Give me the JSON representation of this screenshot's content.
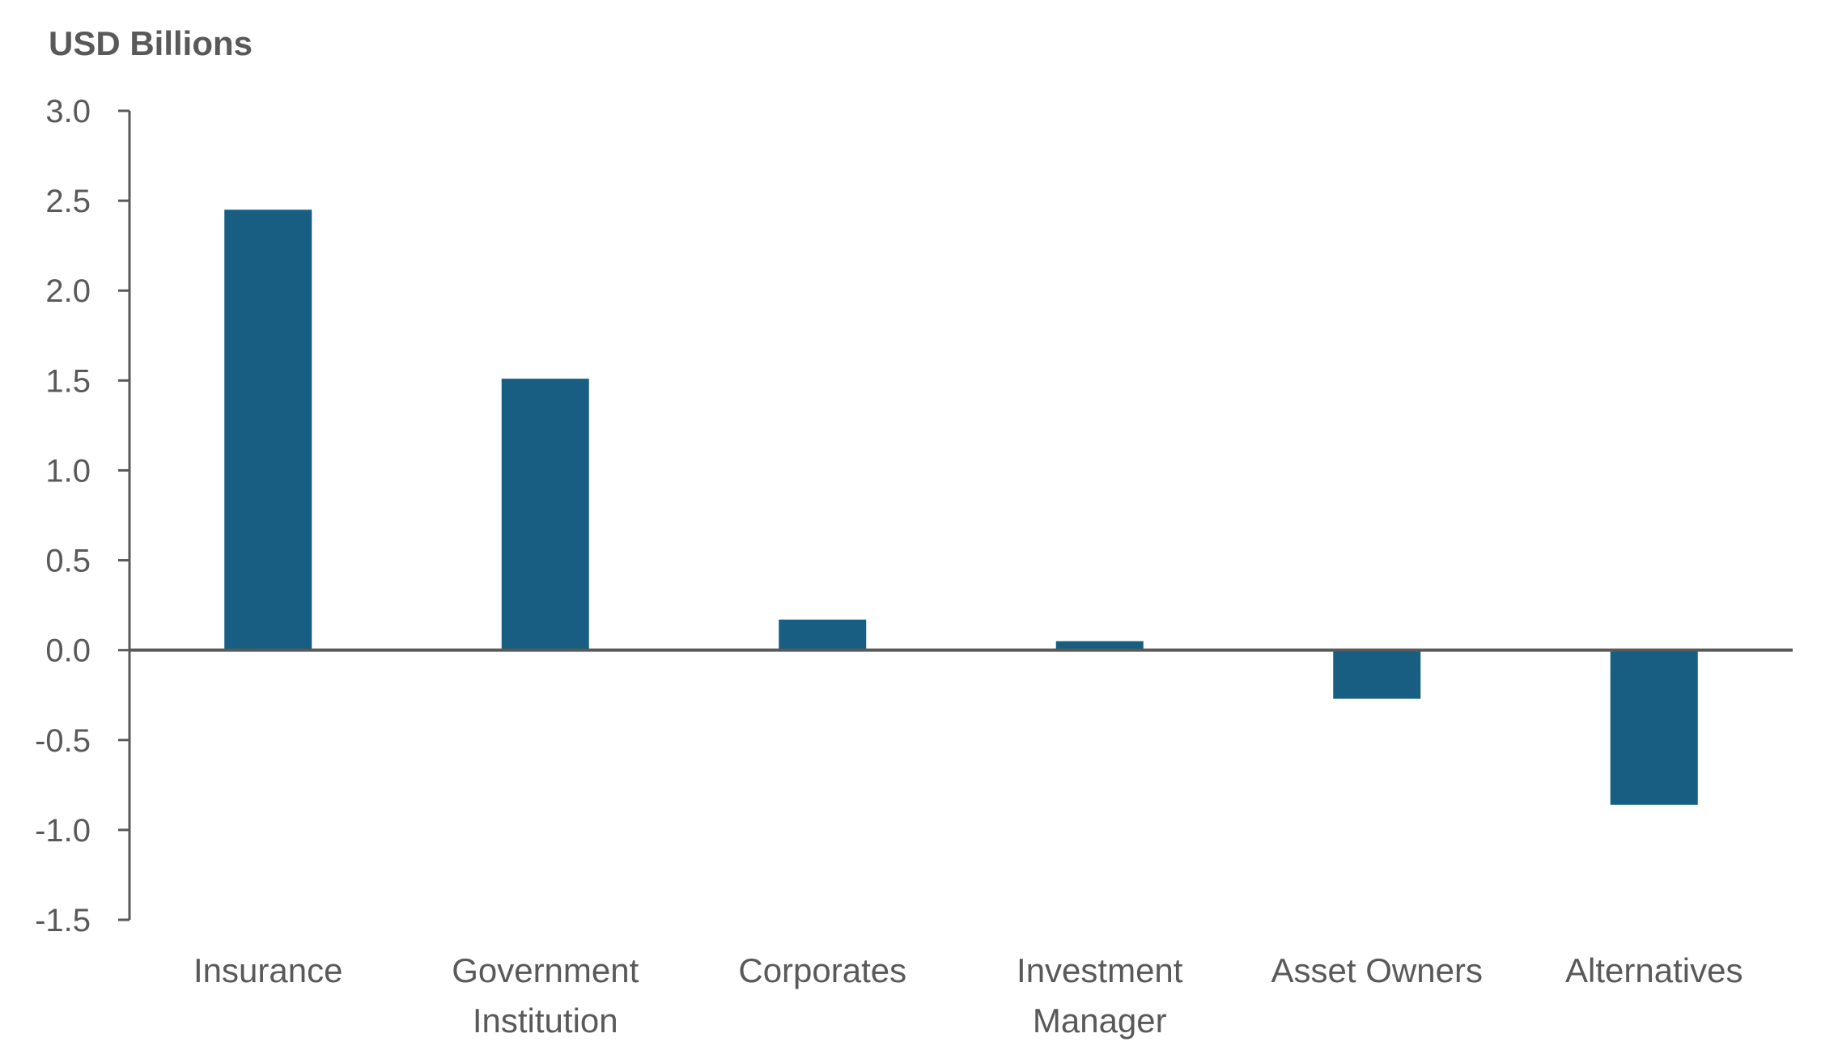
{
  "chart_data": {
    "type": "bar",
    "ylabel": "USD Billions",
    "xlabel": "",
    "categories": [
      [
        "Insurance"
      ],
      [
        "Government",
        "Institution"
      ],
      [
        "Corporates"
      ],
      [
        "Investment",
        "Manager"
      ],
      [
        "Asset Owners"
      ],
      [
        "Alternatives"
      ]
    ],
    "values": [
      2.45,
      1.51,
      0.17,
      0.05,
      -0.27,
      -0.86
    ],
    "ylim": [
      -1.5,
      3.0
    ],
    "yticks": [
      "3.0",
      "2.5",
      "2.0",
      "1.5",
      "1.0",
      "0.5",
      "0.0",
      "-0.5",
      "-1.0",
      "-1.5"
    ],
    "grid": false,
    "colors": {
      "bar": "#175e82",
      "axis": "#595959",
      "text": "#595959"
    }
  }
}
